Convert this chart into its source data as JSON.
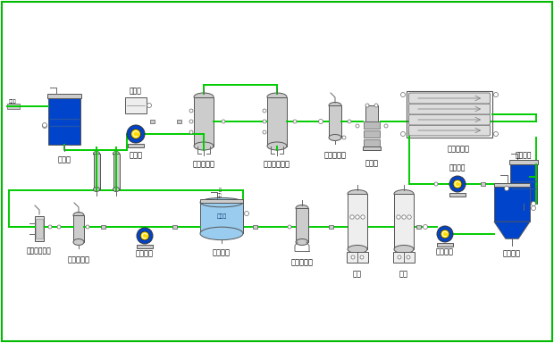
{
  "bg_color": "#ffffff",
  "border_color": "#00bb00",
  "pipe_color": "#00cc00",
  "blue": "#0044cc",
  "light_blue": "#99ccee",
  "lgray": "#cccccc",
  "dgray": "#888888",
  "pipe_lw": 1.4,
  "eq_lw": 0.7,
  "labels": {
    "yuanshuixiang": "原水箱",
    "yuanshuibeng": "原水泵",
    "jixie": "机械过滤器",
    "huoxing": "活性炭过滤器",
    "baoan": "保安过滤器",
    "gaoya": "高压泵",
    "fan": "反渗透装置",
    "qingxibeng": "清洗水泵",
    "qingxixiang": "清洗水箱",
    "weikonglvqi": "微孔过滤器",
    "ziwai": "紫外线杀菌器",
    "zhongduanbeng": "终端水泵",
    "zhongduanxiang": "终端水箱",
    "shuzhi": "树脂捕捉器",
    "hunhe1": "混床",
    "hunhe2": "混床",
    "zhongjianbeng": "中间水泵",
    "zhongjianxiang": "中间水箱",
    "jiliang": "计量泵"
  }
}
